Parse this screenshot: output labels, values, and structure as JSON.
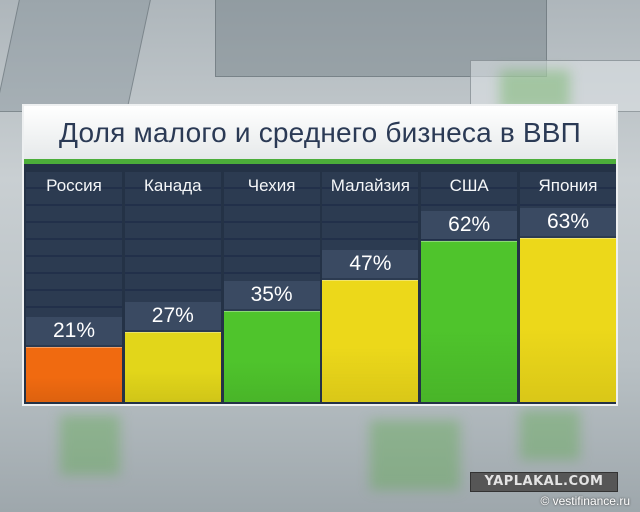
{
  "chart_data": {
    "type": "bar",
    "title": "Доля малого и среднего бизнеса в ВВП",
    "categories": [
      "Россия",
      "Канада",
      "Чехия",
      "Малайзия",
      "США",
      "Япония"
    ],
    "values": [
      21,
      27,
      35,
      47,
      62,
      63
    ],
    "value_labels": [
      "21%",
      "27%",
      "35%",
      "47%",
      "62%",
      "63%"
    ],
    "unit": "%",
    "ylim": [
      0,
      100
    ],
    "colors": [
      "#f06a10",
      "#e2d61a",
      "#4fc42c",
      "#ecd81a",
      "#4fc42c",
      "#ecd81a"
    ]
  },
  "footer": {
    "watermark": "YAPLAKAL.COM",
    "copyright": "© vestifinance.ru"
  }
}
